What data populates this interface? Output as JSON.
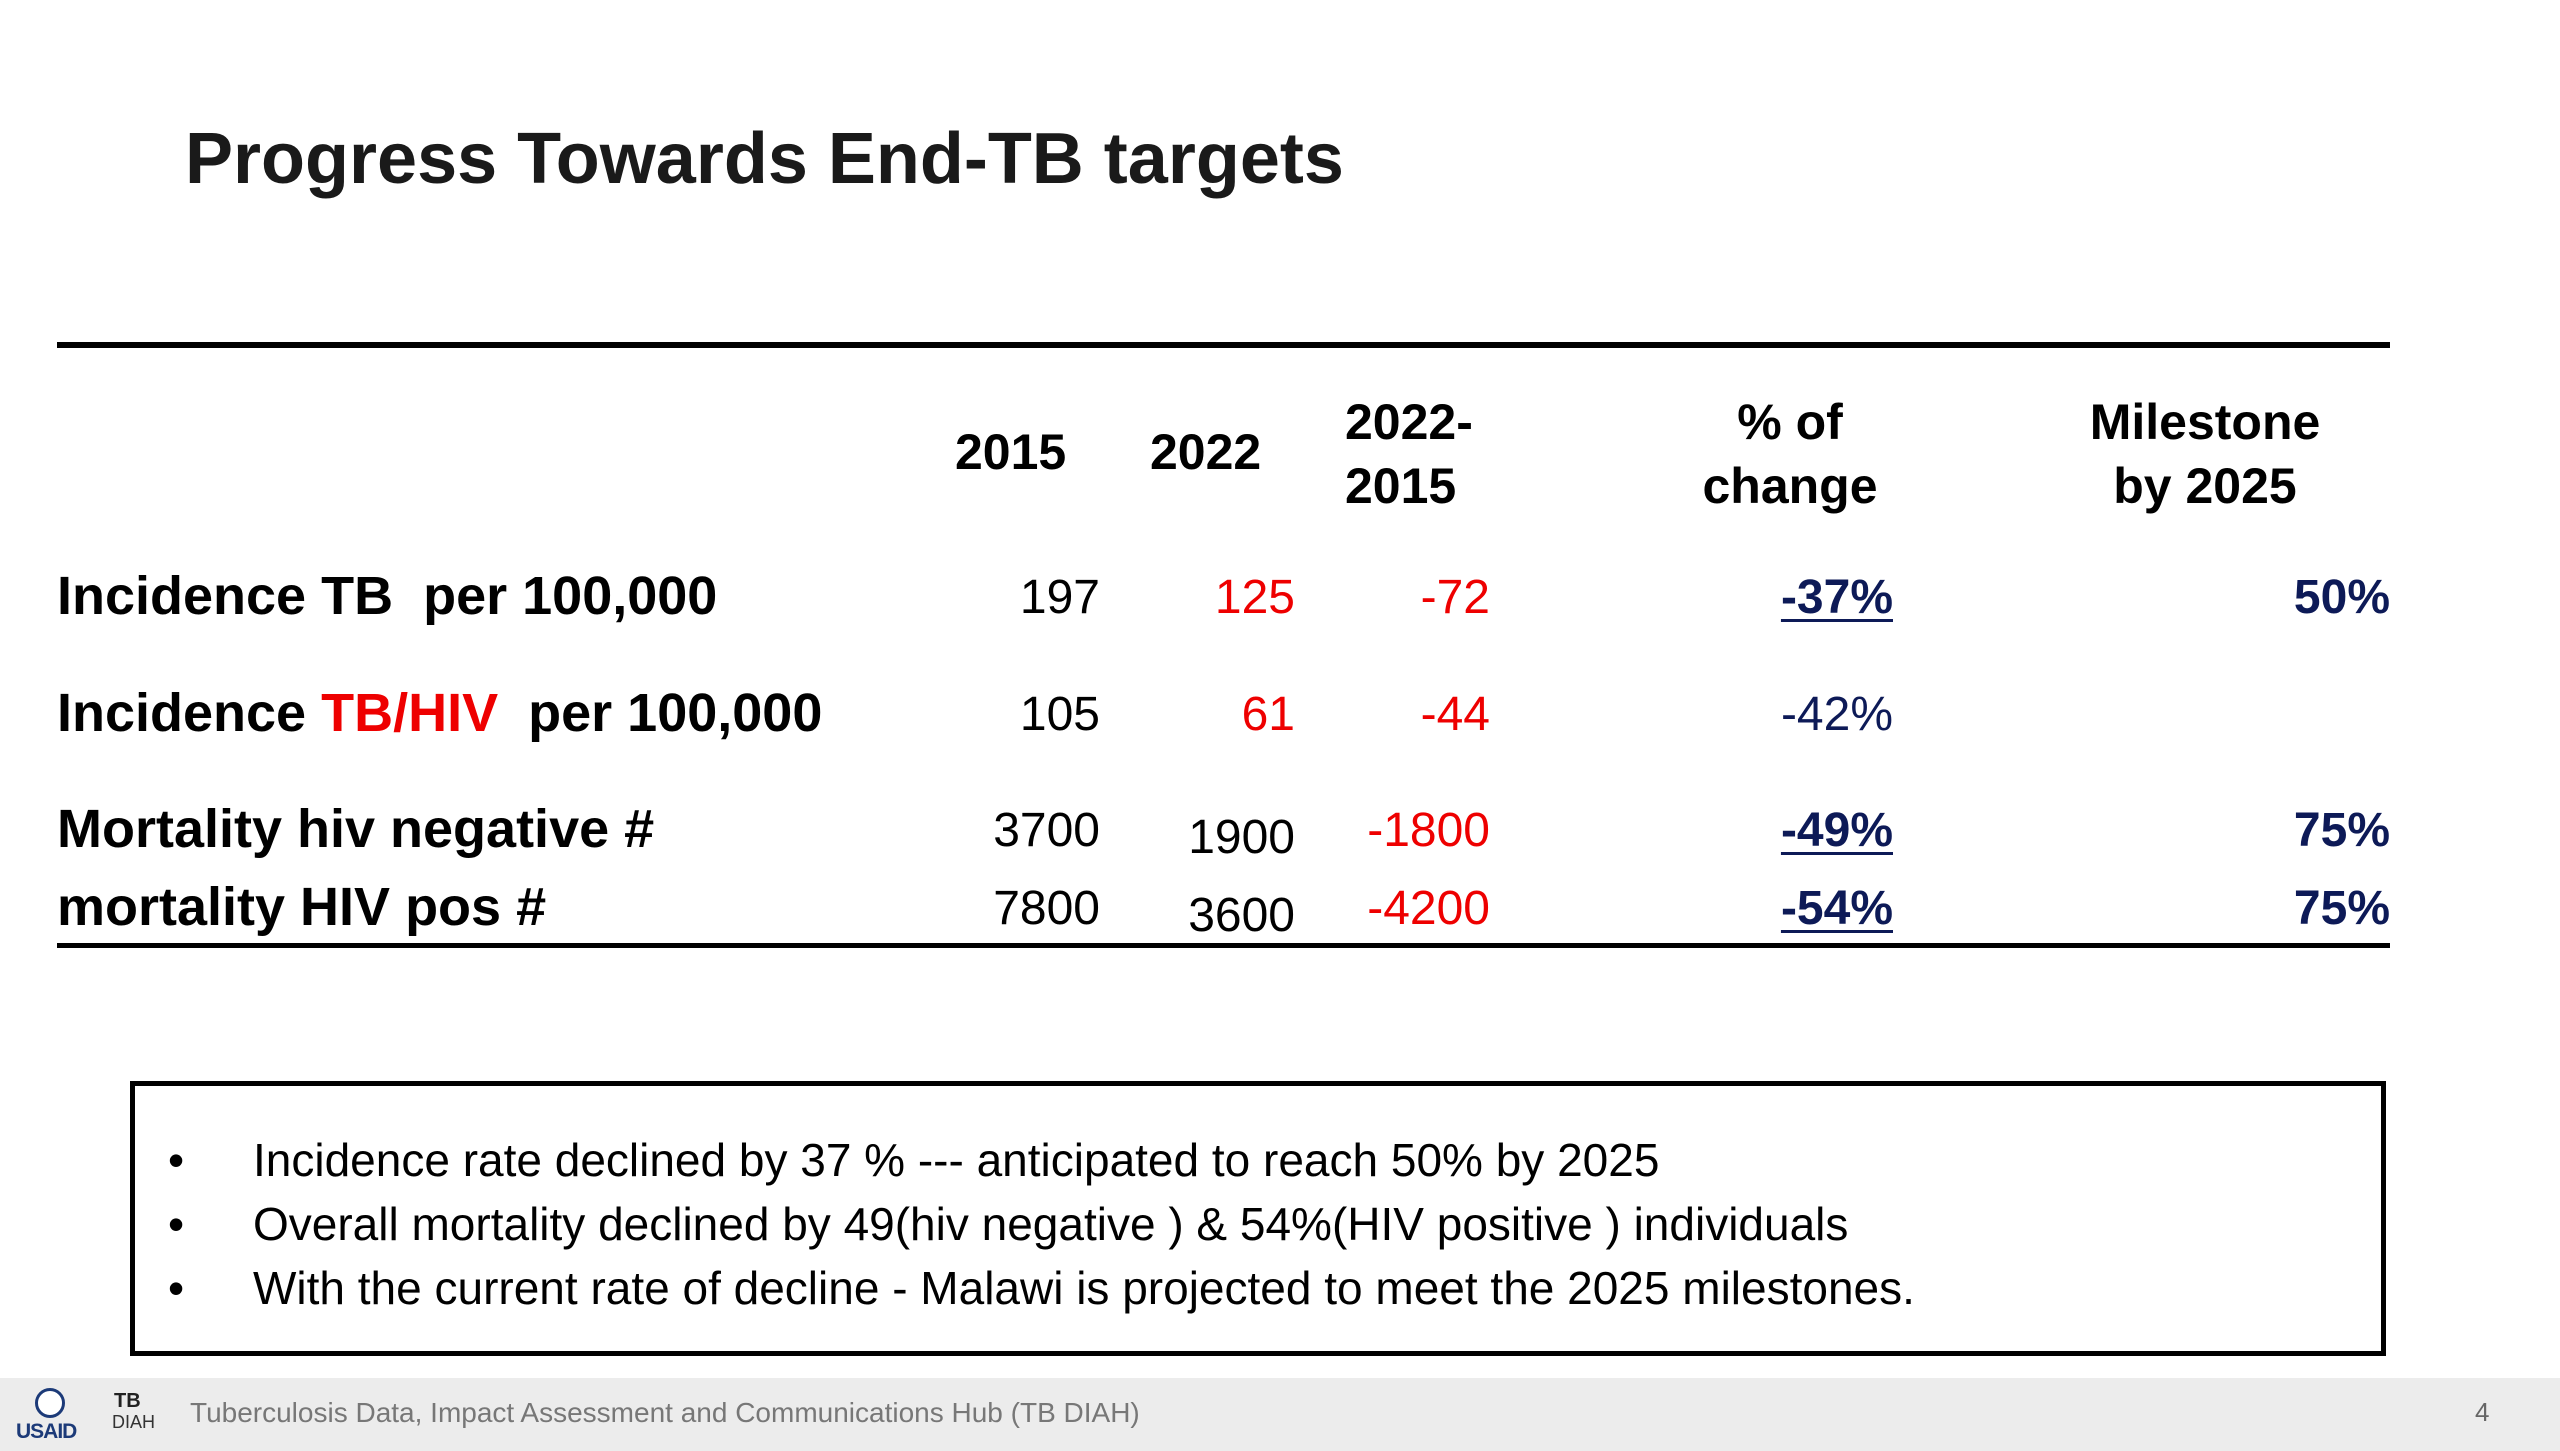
{
  "title": "Progress Towards End-TB targets",
  "headers": {
    "col2015": "2015",
    "col2022": "2022",
    "coldiff_1": "2022-",
    "coldiff_2": "2015",
    "colpct_1": "% of",
    "colpct_2": "change",
    "colmile_1": "Milestone",
    "colmile_2": "by 2025"
  },
  "rows": [
    {
      "label_a": "Incidence",
      "label_b": "TB",
      "label_c": "  per 100,000",
      "v2015": "197",
      "v2022": "125",
      "diff": "-72",
      "pct": "-37%",
      "milestone": "50%"
    },
    {
      "label_a": "Incidence",
      "label_b": "TB/HIV",
      "label_c": "  per 100,000",
      "v2015": "105",
      "v2022": "61",
      "diff": "-44",
      "pct": "-42%",
      "milestone": ""
    },
    {
      "label_a": "Mortality hiv negative #",
      "label_b": "",
      "label_c": "",
      "v2015": "3700",
      "v2022": "1900",
      "diff": "-1800",
      "pct": "-49%",
      "milestone": "75%"
    },
    {
      "label_a": "mortality HIV pos #",
      "label_b": "",
      "label_c": "",
      "v2015": "7800",
      "v2022": "3600",
      "diff": "-4200",
      "pct": "-54%",
      "milestone": "75%"
    }
  ],
  "summary": [
    "Incidence rate  declined by 37 % --- anticipated to reach 50% by 2025",
    "Overall mortality  declined  by 49(hiv negative ) & 54%(HIV positive ) individuals",
    "With the current rate of decline  - Malawi is projected to meet the 2025 milestones."
  ],
  "bullet_char": "•",
  "footer": {
    "text": "Tuberculosis Data, Impact Assessment and Communications Hub (TB DIAH)",
    "page": "4",
    "logo_usaid": "USAID",
    "logo_tb": "TB",
    "logo_diah": "DIAH"
  },
  "colors": {
    "red": "#ee0000",
    "navy": "#0d1a57"
  }
}
